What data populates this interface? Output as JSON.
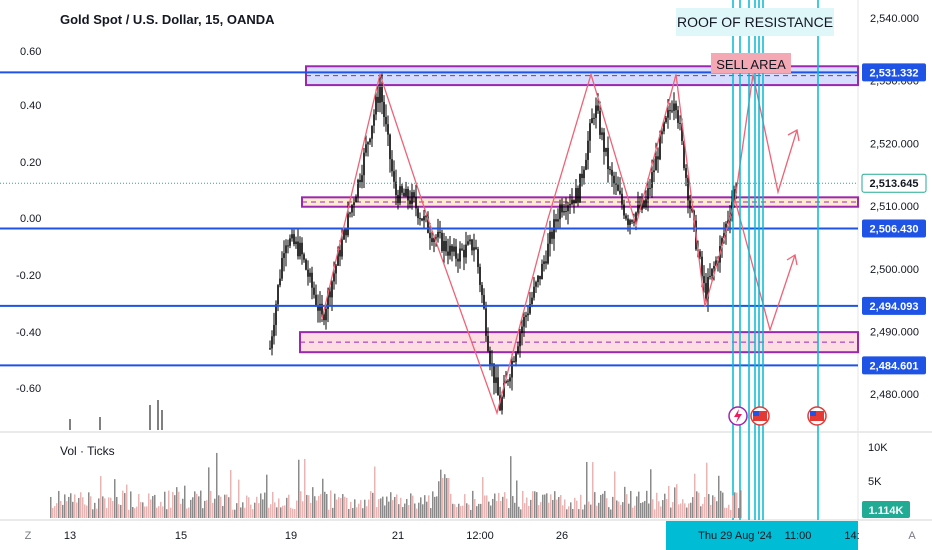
{
  "header": {
    "symbol_title": "Gold Spot / U.S. Dollar, 15, OANDA",
    "annotation_title": "ROOF OF RESISTANCE",
    "sell_label": "SELL AREA"
  },
  "volume_pane": {
    "label": "Vol · Ticks",
    "ticks": [
      "10K",
      "5K"
    ],
    "current_value": "1.114K"
  },
  "left_axis": {
    "ticks": [
      "0.60",
      "0.40",
      "0.20",
      "0.00",
      "-0.20",
      "-0.40",
      "-0.60"
    ]
  },
  "bottom_bar": {
    "icon_label": "Z",
    "time_labels": [
      "13",
      "15",
      "19",
      "21",
      "12:00",
      "26"
    ],
    "highlight_labels": [
      "Thu 29 Aug '24",
      "11:00",
      "14:"
    ],
    "corner_label": "A"
  },
  "colors": {
    "candle": "#000000",
    "level_line": "#1e53e5",
    "zigzag": "#f06275",
    "purple_zone": "#9c27b0",
    "teal_line": "#00bcd4",
    "sell_label_bg": "#f3a8b3",
    "title_label_bg": "#e0f7fa",
    "badge_bg": "#1e53e5",
    "volume_bar": "#8a8a8a",
    "volume_badge": "#22ab94"
  },
  "chart_data": {
    "type": "candlestick",
    "y_axis": {
      "ticks": [
        2540.0,
        2530.0,
        2520.0,
        2510.0,
        2500.0,
        2490.0,
        2480.0
      ],
      "tick_labels": [
        "2,540.000",
        "2,530.000",
        "2,520.000",
        "2,510.000",
        "2,500.000",
        "2,490.000",
        "2,480.000"
      ],
      "ylim": [
        2476.5,
        2542.6
      ]
    },
    "price_levels": [
      {
        "value": 2531.332,
        "label": "2,531.332"
      },
      {
        "value": 2506.43,
        "label": "2,506.430"
      },
      {
        "value": 2494.093,
        "label": "2,494.093"
      },
      {
        "value": 2484.601,
        "label": "2,484.601"
      }
    ],
    "last_price": {
      "value": 2513.645,
      "label": "2,513.645"
    },
    "zones": [
      {
        "name": "sell-area",
        "top": 2532.3,
        "bottom": 2529.3,
        "color": "#9c27b0",
        "fill": "#cfd8ff"
      },
      {
        "name": "mid-zone",
        "top": 2511.4,
        "bottom": 2509.9,
        "color": "#9c27b0",
        "fill": "#ffe8c7"
      },
      {
        "name": "buy-zone",
        "top": 2489.9,
        "bottom": 2486.7,
        "color": "#9c27b0",
        "fill": "#fdd7de"
      }
    ],
    "volume_ticks": [
      10000,
      5000
    ],
    "volume_last": 1114
  }
}
